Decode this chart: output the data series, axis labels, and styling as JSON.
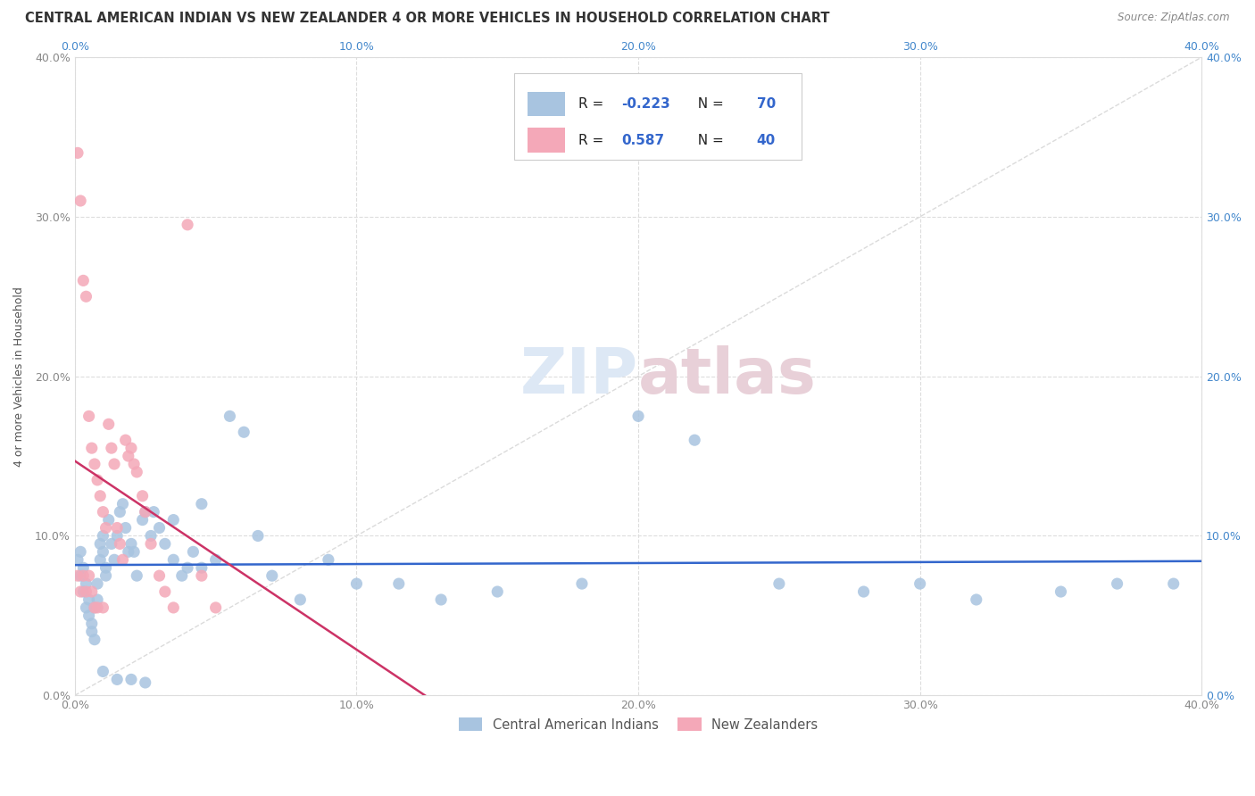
{
  "title": "CENTRAL AMERICAN INDIAN VS NEW ZEALANDER 4 OR MORE VEHICLES IN HOUSEHOLD CORRELATION CHART",
  "source": "Source: ZipAtlas.com",
  "ylabel": "4 or more Vehicles in Household",
  "xlim": [
    0.0,
    0.4
  ],
  "ylim": [
    0.0,
    0.4
  ],
  "xticks": [
    0.0,
    0.1,
    0.2,
    0.3,
    0.4
  ],
  "yticks": [
    0.0,
    0.1,
    0.2,
    0.3,
    0.4
  ],
  "xticklabels": [
    "0.0%",
    "10.0%",
    "20.0%",
    "30.0%",
    "40.0%"
  ],
  "yticklabels": [
    "0.0%",
    "10.0%",
    "20.0%",
    "30.0%",
    "40.0%"
  ],
  "blue_R": -0.223,
  "blue_N": 70,
  "pink_R": 0.587,
  "pink_N": 40,
  "blue_color": "#a8c4e0",
  "pink_color": "#f4a8b8",
  "blue_line_color": "#3366cc",
  "pink_line_color": "#cc3366",
  "diag_line_color": "#cccccc",
  "legend_label_blue": "Central American Indians",
  "legend_label_pink": "New Zealanders",
  "blue_scatter_x": [
    0.001,
    0.002,
    0.002,
    0.003,
    0.003,
    0.004,
    0.004,
    0.005,
    0.005,
    0.006,
    0.006,
    0.007,
    0.007,
    0.008,
    0.008,
    0.009,
    0.009,
    0.01,
    0.01,
    0.011,
    0.011,
    0.012,
    0.013,
    0.014,
    0.015,
    0.016,
    0.017,
    0.018,
    0.019,
    0.02,
    0.021,
    0.022,
    0.024,
    0.025,
    0.027,
    0.028,
    0.03,
    0.032,
    0.035,
    0.038,
    0.04,
    0.042,
    0.045,
    0.05,
    0.055,
    0.06,
    0.065,
    0.07,
    0.08,
    0.09,
    0.1,
    0.115,
    0.13,
    0.15,
    0.18,
    0.2,
    0.22,
    0.25,
    0.28,
    0.3,
    0.32,
    0.35,
    0.37,
    0.39,
    0.01,
    0.015,
    0.02,
    0.025,
    0.035,
    0.045
  ],
  "blue_scatter_y": [
    0.085,
    0.09,
    0.075,
    0.08,
    0.065,
    0.07,
    0.055,
    0.06,
    0.05,
    0.045,
    0.04,
    0.055,
    0.035,
    0.07,
    0.06,
    0.085,
    0.095,
    0.1,
    0.09,
    0.08,
    0.075,
    0.11,
    0.095,
    0.085,
    0.1,
    0.115,
    0.12,
    0.105,
    0.09,
    0.095,
    0.09,
    0.075,
    0.11,
    0.115,
    0.1,
    0.115,
    0.105,
    0.095,
    0.085,
    0.075,
    0.08,
    0.09,
    0.08,
    0.085,
    0.175,
    0.165,
    0.1,
    0.075,
    0.06,
    0.085,
    0.07,
    0.07,
    0.06,
    0.065,
    0.07,
    0.175,
    0.16,
    0.07,
    0.065,
    0.07,
    0.06,
    0.065,
    0.07,
    0.07,
    0.015,
    0.01,
    0.01,
    0.008,
    0.11,
    0.12
  ],
  "pink_scatter_x": [
    0.001,
    0.001,
    0.002,
    0.002,
    0.003,
    0.003,
    0.004,
    0.004,
    0.005,
    0.005,
    0.006,
    0.006,
    0.007,
    0.007,
    0.008,
    0.008,
    0.009,
    0.01,
    0.01,
    0.011,
    0.012,
    0.013,
    0.014,
    0.015,
    0.016,
    0.017,
    0.018,
    0.019,
    0.02,
    0.021,
    0.022,
    0.024,
    0.025,
    0.027,
    0.03,
    0.032,
    0.035,
    0.04,
    0.045,
    0.05
  ],
  "pink_scatter_y": [
    0.34,
    0.075,
    0.31,
    0.065,
    0.26,
    0.075,
    0.25,
    0.065,
    0.175,
    0.075,
    0.155,
    0.065,
    0.145,
    0.055,
    0.135,
    0.055,
    0.125,
    0.115,
    0.055,
    0.105,
    0.17,
    0.155,
    0.145,
    0.105,
    0.095,
    0.085,
    0.16,
    0.15,
    0.155,
    0.145,
    0.14,
    0.125,
    0.115,
    0.095,
    0.075,
    0.065,
    0.055,
    0.295,
    0.075,
    0.055
  ],
  "watermark_zip": "ZIP",
  "watermark_atlas": "atlas",
  "title_fontsize": 10.5,
  "axis_fontsize": 9,
  "tick_fontsize": 9
}
